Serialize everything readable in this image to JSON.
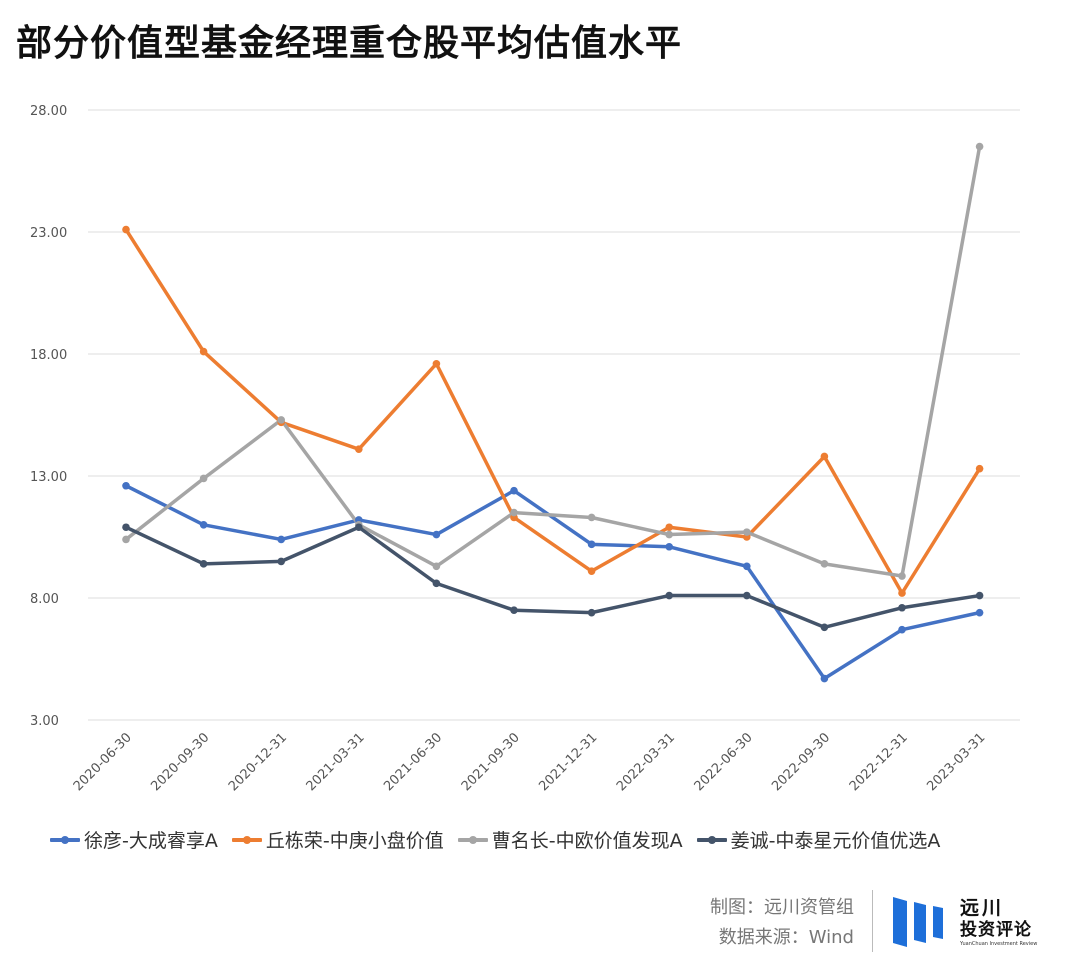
{
  "title": "部分价值型基金经理重仓股平均估值水平",
  "chart_data": {
    "type": "line",
    "categories": [
      "2020-06-30",
      "2020-09-30",
      "2020-12-31",
      "2021-03-31",
      "2021-06-30",
      "2021-09-30",
      "2021-12-31",
      "2022-03-31",
      "2022-06-30",
      "2022-09-30",
      "2022-12-31",
      "2023-03-31"
    ],
    "ylim": [
      3,
      28
    ],
    "yticks": [
      "3.00",
      "8.00",
      "13.00",
      "18.00",
      "23.00",
      "28.00"
    ],
    "grid": true,
    "legend": "bottom",
    "series": [
      {
        "name": "徐彦-大成睿享A",
        "color": "#4472c4",
        "values": [
          12.6,
          11.0,
          10.4,
          11.2,
          10.6,
          12.4,
          10.2,
          10.1,
          9.3,
          4.7,
          6.7,
          7.4
        ]
      },
      {
        "name": "丘栋荣-中庚小盘价值",
        "color": "#ed7d31",
        "values": [
          23.1,
          18.1,
          15.2,
          14.1,
          17.6,
          11.3,
          9.1,
          10.9,
          10.5,
          13.8,
          8.2,
          13.3
        ]
      },
      {
        "name": "曹名长-中欧价值发现A",
        "color": "#a5a5a5",
        "values": [
          10.4,
          12.9,
          15.3,
          11.0,
          9.3,
          11.5,
          11.3,
          10.6,
          10.7,
          9.4,
          8.9,
          26.5
        ]
      },
      {
        "name": "姜诚-中泰星元价值优选A",
        "color": "#44546a",
        "values": [
          10.9,
          9.4,
          9.5,
          10.9,
          8.6,
          7.5,
          7.4,
          8.1,
          8.1,
          6.8,
          7.6,
          8.1
        ]
      }
    ]
  },
  "credits": {
    "line1": "制图：远川资管组",
    "line2": "数据来源：Wind"
  },
  "logo": {
    "line1": "远川",
    "line2": "投资评论",
    "tagline": "YuanChuan Investment Review",
    "color": "#1e6fd9"
  }
}
